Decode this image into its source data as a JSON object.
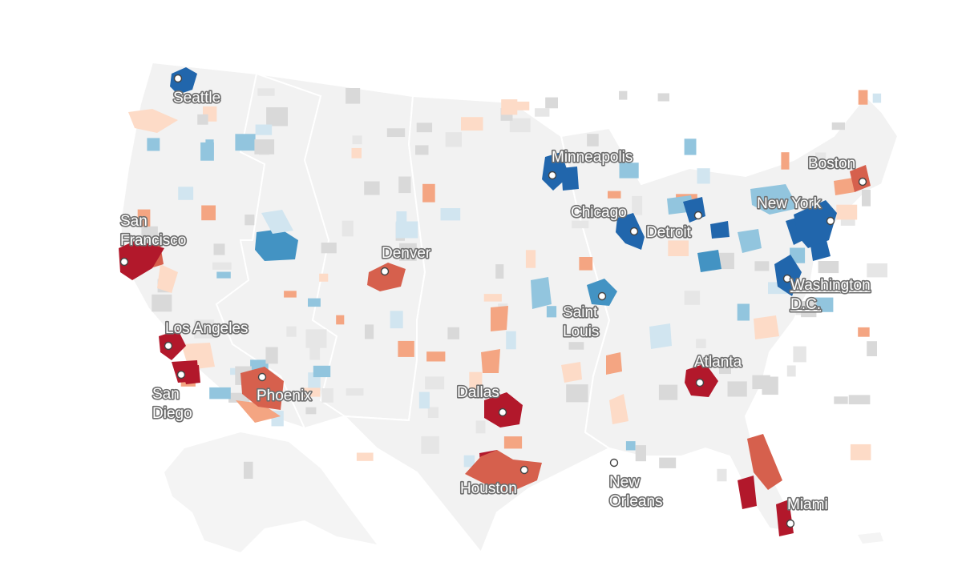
{
  "map": {
    "type": "choropleth",
    "region": "United States",
    "colors": {
      "background": "#ffffff",
      "land": "#f2f2f2",
      "borders": "#ffffff",
      "no_data": "#d9d9d9",
      "dark_red": "#b2182b",
      "red": "#d6604d",
      "light_red": "#f4a582",
      "pale_red": "#fddbc7",
      "pale_blue": "#d1e5f0",
      "light_blue": "#92c5de",
      "blue": "#4393c3",
      "dark_blue": "#2166ac"
    },
    "cities": [
      {
        "key": "seattle",
        "label": [
          "Seattle"
        ],
        "color": "dark_blue"
      },
      {
        "key": "san-francisco",
        "label": [
          "San",
          "Francisco"
        ],
        "color": "dark_red"
      },
      {
        "key": "los-angeles",
        "label": [
          "Los Angeles"
        ],
        "color": "dark_red"
      },
      {
        "key": "san-diego",
        "label": [
          "San",
          "Diego"
        ],
        "color": "dark_red"
      },
      {
        "key": "phoenix",
        "label": [
          "Phoenix"
        ],
        "color": "red"
      },
      {
        "key": "denver",
        "label": [
          "Denver"
        ],
        "color": "red"
      },
      {
        "key": "dallas",
        "label": [
          "Dallas"
        ],
        "color": "dark_red"
      },
      {
        "key": "houston",
        "label": [
          "Houston"
        ],
        "color": "red"
      },
      {
        "key": "minneapolis",
        "label": [
          "Minneapolis"
        ],
        "color": "dark_blue"
      },
      {
        "key": "chicago",
        "label": [
          "Chicago"
        ],
        "color": "dark_blue"
      },
      {
        "key": "detroit",
        "label": [
          "Detroit"
        ],
        "color": "dark_blue"
      },
      {
        "key": "saint-louis",
        "label": [
          "Saint",
          "Louis"
        ],
        "color": "blue"
      },
      {
        "key": "new-orleans",
        "label": [
          "New",
          "Orleans"
        ],
        "color": "none"
      },
      {
        "key": "atlanta",
        "label": [
          "Atlanta"
        ],
        "color": "dark_red"
      },
      {
        "key": "miami",
        "label": [
          "Miami"
        ],
        "color": "dark_red"
      },
      {
        "key": "washington-dc",
        "label": [
          "Washington",
          "D.C."
        ],
        "color": "dark_blue"
      },
      {
        "key": "new-york",
        "label": [
          "New York"
        ],
        "color": "dark_blue"
      },
      {
        "key": "boston",
        "label": [
          "Boston"
        ],
        "color": "red"
      }
    ]
  }
}
